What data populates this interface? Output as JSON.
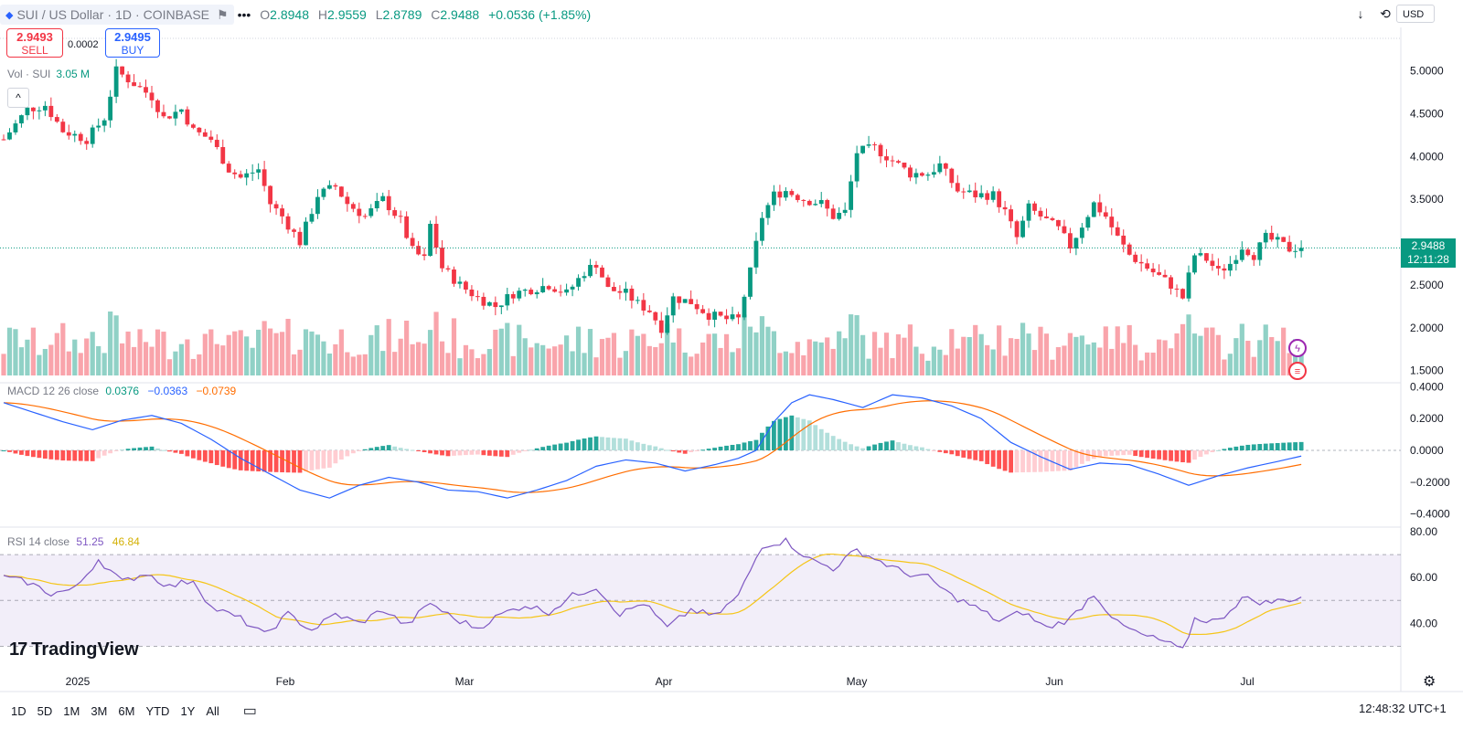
{
  "header": {
    "symbol": "SUI / US Dollar",
    "interval": "1D",
    "exchange": "COINBASE",
    "menu": "•••",
    "open_label": "O",
    "open": "2.8948",
    "high_label": "H",
    "high": "2.9559",
    "low_label": "L",
    "low": "2.8789",
    "close_label": "C",
    "close": "2.9488",
    "change": "+0.0536 (+1.85%)"
  },
  "trade": {
    "sell_price": "2.9493",
    "sell_label": "SELL",
    "spread": "0.0002",
    "buy_price": "2.9495",
    "buy_label": "BUY"
  },
  "volume_legend": {
    "label": "Vol · SUI",
    "value": "3.05 M"
  },
  "macd_legend": {
    "label": "MACD 12 26 close",
    "hist": "0.0376",
    "macd": "−0.0363",
    "signal": "−0.0739"
  },
  "rsi_legend": {
    "label": "RSI 14 close",
    "rsi": "51.25",
    "ma": "46.84"
  },
  "currency": "USD",
  "price_tag": {
    "price": "2.9488",
    "countdown": "12:11:28"
  },
  "logo": "TradingView",
  "timeframes": [
    "1D",
    "5D",
    "1M",
    "3M",
    "6M",
    "YTD",
    "1Y",
    "All"
  ],
  "clock": "12:48:32 UTC+1",
  "colors": {
    "up": "#089981",
    "down": "#f23645",
    "macd": "#2962ff",
    "signal": "#ff6d00",
    "rsi": "#7e57c2",
    "rsi_ma": "#f5c518"
  },
  "icons": {
    "collapse": "chevron-up-icon",
    "arrow": "arrow-down-icon",
    "cycle": "cycle-icon",
    "calendar": "calendar-range-icon",
    "gear": "gear-icon",
    "flash": "flash-icon",
    "flag": "flag-icon"
  },
  "chart_data": {
    "type": "candlestick",
    "xlabels": [
      "2025",
      "Feb",
      "Mar",
      "Apr",
      "May",
      "Jun",
      "Jul"
    ],
    "price_axis": {
      "ticks": [
        "5.0000",
        "4.5000",
        "4.0000",
        "3.5000",
        "2.5000",
        "2.0000",
        "1.5000"
      ],
      "ylim": [
        1.4,
        5.4
      ]
    },
    "macd_axis": {
      "ticks": [
        "0.4000",
        "0.2000",
        "0.0000",
        "−0.2000",
        "−0.4000"
      ],
      "ylim": [
        -0.42,
        0.42
      ]
    },
    "rsi_axis": {
      "ticks": [
        "80.00",
        "60.00",
        "40.00"
      ],
      "ylim": [
        27,
        80
      ],
      "bands": [
        30,
        50,
        70
      ]
    },
    "price_anchors": [
      [
        0,
        4.2
      ],
      [
        4,
        4.55
      ],
      [
        7,
        4.6
      ],
      [
        10,
        4.3
      ],
      [
        14,
        4.2
      ],
      [
        17,
        4.45
      ],
      [
        19,
        5.0
      ],
      [
        22,
        4.85
      ],
      [
        25,
        4.7
      ],
      [
        27,
        4.45
      ],
      [
        30,
        4.55
      ],
      [
        32,
        4.3
      ],
      [
        35,
        4.2
      ],
      [
        38,
        3.85
      ],
      [
        40,
        3.75
      ],
      [
        43,
        3.85
      ],
      [
        45,
        3.45
      ],
      [
        47,
        3.3
      ],
      [
        50,
        3.0
      ],
      [
        53,
        3.55
      ],
      [
        56,
        3.65
      ],
      [
        58,
        3.45
      ],
      [
        61,
        3.3
      ],
      [
        64,
        3.5
      ],
      [
        67,
        3.25
      ],
      [
        69,
        2.9
      ],
      [
        71,
        2.8
      ],
      [
        72,
        3.2
      ],
      [
        74,
        2.7
      ],
      [
        77,
        2.5
      ],
      [
        80,
        2.35
      ],
      [
        83,
        2.25
      ],
      [
        86,
        2.4
      ],
      [
        89,
        2.45
      ],
      [
        92,
        2.5
      ],
      [
        95,
        2.4
      ],
      [
        98,
        2.65
      ],
      [
        100,
        2.75
      ],
      [
        102,
        2.45
      ],
      [
        105,
        2.4
      ],
      [
        107,
        2.28
      ],
      [
        109,
        2.2
      ],
      [
        111,
        2.0
      ],
      [
        113,
        2.35
      ],
      [
        116,
        2.3
      ],
      [
        119,
        2.15
      ],
      [
        122,
        2.1
      ],
      [
        124,
        2.1
      ],
      [
        126,
        2.65
      ],
      [
        128,
        3.3
      ],
      [
        130,
        3.55
      ],
      [
        132,
        3.6
      ],
      [
        135,
        3.5
      ],
      [
        138,
        3.45
      ],
      [
        140,
        3.3
      ],
      [
        142,
        3.35
      ],
      [
        144,
        4.05
      ],
      [
        147,
        4.1
      ],
      [
        150,
        3.95
      ],
      [
        153,
        3.8
      ],
      [
        156,
        3.8
      ],
      [
        158,
        3.9
      ],
      [
        159,
        3.8
      ],
      [
        161,
        3.6
      ],
      [
        164,
        3.55
      ],
      [
        167,
        3.55
      ],
      [
        169,
        3.35
      ],
      [
        171,
        3.05
      ],
      [
        173,
        3.4
      ],
      [
        175,
        3.3
      ],
      [
        178,
        3.15
      ],
      [
        180,
        2.95
      ],
      [
        182,
        3.2
      ],
      [
        184,
        3.45
      ],
      [
        186,
        3.3
      ],
      [
        188,
        3.05
      ],
      [
        190,
        2.85
      ],
      [
        193,
        2.7
      ],
      [
        195,
        2.6
      ],
      [
        197,
        2.5
      ],
      [
        199,
        2.35
      ],
      [
        201,
        2.85
      ],
      [
        203,
        2.8
      ],
      [
        205,
        2.65
      ],
      [
        207,
        2.75
      ],
      [
        209,
        2.95
      ],
      [
        211,
        2.85
      ],
      [
        213,
        3.05
      ],
      [
        215,
        3.0
      ],
      [
        217,
        2.92
      ],
      [
        219,
        2.95
      ]
    ],
    "macd_anchors": [
      [
        0,
        0.3
      ],
      [
        10,
        0.18
      ],
      [
        15,
        0.13
      ],
      [
        20,
        0.19
      ],
      [
        25,
        0.22
      ],
      [
        30,
        0.17
      ],
      [
        35,
        0.07
      ],
      [
        40,
        -0.05
      ],
      [
        45,
        -0.15
      ],
      [
        50,
        -0.25
      ],
      [
        55,
        -0.3
      ],
      [
        60,
        -0.22
      ],
      [
        65,
        -0.17
      ],
      [
        70,
        -0.2
      ],
      [
        75,
        -0.25
      ],
      [
        80,
        -0.26
      ],
      [
        85,
        -0.3
      ],
      [
        90,
        -0.25
      ],
      [
        95,
        -0.19
      ],
      [
        100,
        -0.1
      ],
      [
        105,
        -0.06
      ],
      [
        110,
        -0.08
      ],
      [
        115,
        -0.13
      ],
      [
        120,
        -0.09
      ],
      [
        124,
        -0.05
      ],
      [
        127,
        0.0
      ],
      [
        130,
        0.18
      ],
      [
        133,
        0.3
      ],
      [
        136,
        0.35
      ],
      [
        140,
        0.32
      ],
      [
        145,
        0.27
      ],
      [
        150,
        0.35
      ],
      [
        155,
        0.33
      ],
      [
        160,
        0.28
      ],
      [
        165,
        0.2
      ],
      [
        170,
        0.05
      ],
      [
        175,
        -0.04
      ],
      [
        180,
        -0.12
      ],
      [
        185,
        -0.08
      ],
      [
        190,
        -0.09
      ],
      [
        195,
        -0.15
      ],
      [
        200,
        -0.22
      ],
      [
        205,
        -0.16
      ],
      [
        210,
        -0.11
      ],
      [
        215,
        -0.07
      ],
      [
        219,
        -0.036
      ]
    ],
    "rsi_anchors": [
      [
        0,
        60
      ],
      [
        4,
        58
      ],
      [
        8,
        53
      ],
      [
        12,
        55
      ],
      [
        16,
        68
      ],
      [
        20,
        58
      ],
      [
        24,
        62
      ],
      [
        28,
        56
      ],
      [
        32,
        59
      ],
      [
        35,
        47
      ],
      [
        40,
        42
      ],
      [
        44,
        35
      ],
      [
        48,
        44
      ],
      [
        52,
        37
      ],
      [
        56,
        44
      ],
      [
        60,
        40
      ],
      [
        64,
        46
      ],
      [
        68,
        39
      ],
      [
        72,
        49
      ],
      [
        76,
        42
      ],
      [
        80,
        38
      ],
      [
        84,
        44
      ],
      [
        88,
        48
      ],
      [
        92,
        45
      ],
      [
        96,
        52
      ],
      [
        100,
        56
      ],
      [
        104,
        44
      ],
      [
        108,
        49
      ],
      [
        112,
        38
      ],
      [
        116,
        46
      ],
      [
        120,
        43
      ],
      [
        124,
        52
      ],
      [
        128,
        74
      ],
      [
        132,
        76
      ],
      [
        136,
        68
      ],
      [
        140,
        64
      ],
      [
        144,
        72
      ],
      [
        148,
        67
      ],
      [
        152,
        62
      ],
      [
        156,
        60
      ],
      [
        160,
        52
      ],
      [
        164,
        47
      ],
      [
        168,
        41
      ],
      [
        172,
        45
      ],
      [
        176,
        38
      ],
      [
        180,
        42
      ],
      [
        184,
        53
      ],
      [
        188,
        40
      ],
      [
        192,
        35
      ],
      [
        196,
        32
      ],
      [
        199,
        28
      ],
      [
        201,
        42
      ],
      [
        205,
        41
      ],
      [
        209,
        51
      ],
      [
        213,
        49
      ],
      [
        219,
        51.25
      ]
    ],
    "volume_relative": "bars scaled to pane"
  }
}
